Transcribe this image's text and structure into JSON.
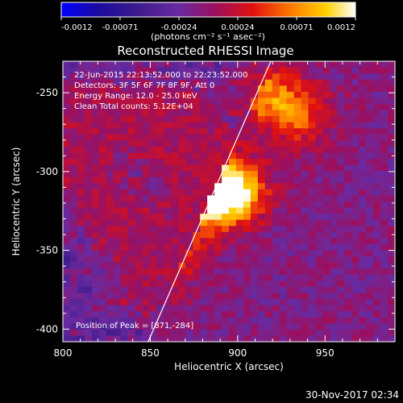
{
  "chart_data": {
    "type": "heatmap",
    "title": "Reconstructed RHESSI Image",
    "xlabel": "Heliocentric X (arcsec)",
    "ylabel": "Heliocentric Y (arcsec)",
    "xlim": [
      800,
      990
    ],
    "ylim": [
      -408,
      -230
    ],
    "x_ticks": [
      800,
      850,
      900,
      950
    ],
    "y_ticks": [
      -250,
      -300,
      -350,
      -400
    ],
    "colorbar": {
      "min": -0.0012,
      "max": 0.0012,
      "ticks": [
        "-0.0012",
        "-0.00071",
        "-0.00024",
        "0.00024",
        "0.00071",
        "0.0012"
      ],
      "units": "(photons cm⁻² s⁻¹ asec⁻²)"
    },
    "info_lines": [
      "22-Jun-2015 22:13:52.000 to 22:23:52.000",
      "Detectors: 3F 5F 6F 7F 8F 9F, Att 0",
      "Energy Range: 12.0 - 25.0 keV",
      "Clean    Total counts: 5.12E+04"
    ],
    "peak_label": "Position of Peak = [871,-284]",
    "peak": [
      871,
      -284
    ],
    "limb_line": [
      [
        848,
        -410
      ],
      [
        919,
        -230
      ]
    ],
    "sources": [
      {
        "x": 818,
        "y": -265,
        "amp": 0.001
      },
      {
        "x": 855,
        "y": -265,
        "amp": 0.0009
      },
      {
        "x": 870,
        "y": -282,
        "amp": 0.0011
      },
      {
        "x": 896,
        "y": -312,
        "amp": 0.0012
      },
      {
        "x": 882,
        "y": -318,
        "amp": 0.0009
      },
      {
        "x": 830,
        "y": -330,
        "amp": 0.0007
      },
      {
        "x": 915,
        "y": -250,
        "amp": 0.0007
      },
      {
        "x": 935,
        "y": -265,
        "amp": 0.0006
      },
      {
        "x": 860,
        "y": -350,
        "amp": 0.0006
      },
      {
        "x": 810,
        "y": -300,
        "amp": 0.0006
      },
      {
        "x": 845,
        "y": -375,
        "amp": 0.0004
      }
    ],
    "grid": false
  },
  "footer_timestamp": "30-Nov-2017 02:34"
}
